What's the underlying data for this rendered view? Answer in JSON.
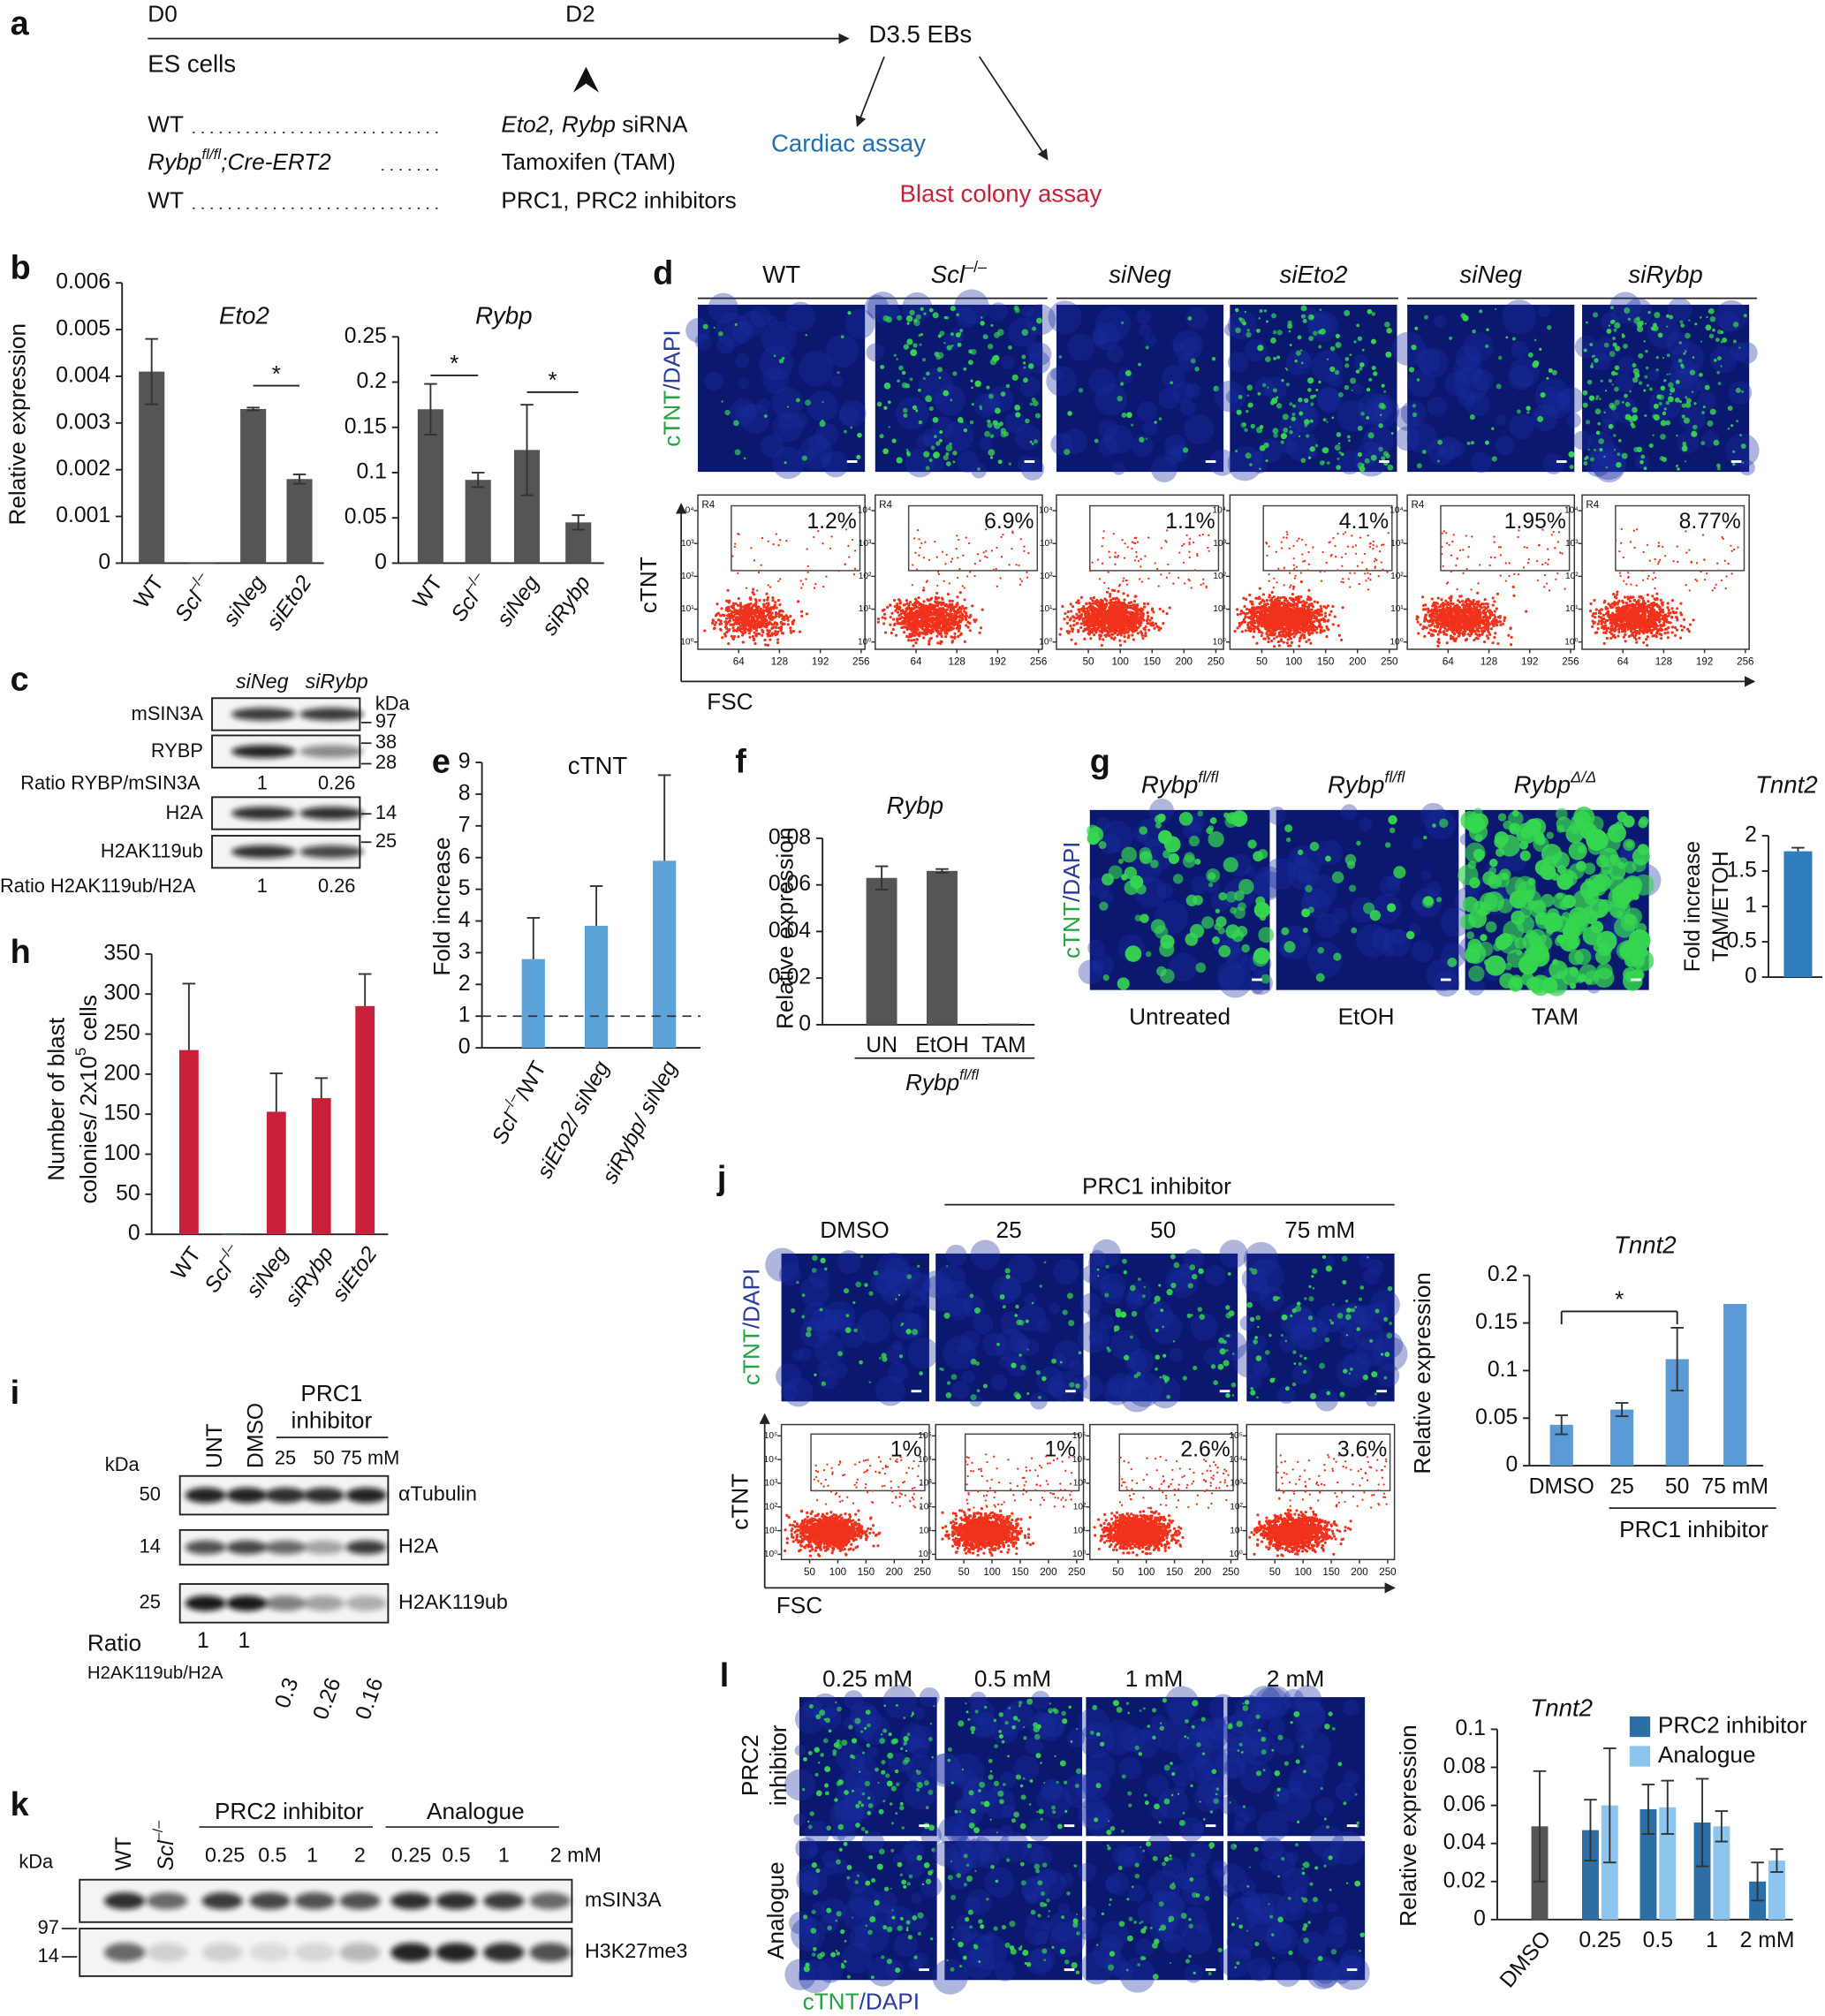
{
  "a": {
    "label": "a",
    "timeline": [
      "D0",
      "D2",
      "D3.5 EBs"
    ],
    "start": "ES cells",
    "rows": [
      {
        "left": [
          {
            "t": "WT"
          }
        ],
        "right": [
          {
            "t": "Eto2, Rybp",
            "i": true
          },
          {
            "t": " siRNA"
          }
        ]
      },
      {
        "left": [
          {
            "t": "Rybp",
            "i": true
          },
          {
            "t": "fl/fl",
            "i": true,
            "sup": true
          },
          {
            "t": ";Cre-ERT2",
            "i": true
          }
        ],
        "right": [
          {
            "t": "Tamoxifen (TAM)"
          }
        ]
      },
      {
        "left": [
          {
            "t": "WT"
          }
        ],
        "right": [
          {
            "t": "PRC1, PRC2 inhibitors"
          }
        ]
      }
    ],
    "assays": [
      {
        "text": "Cardiac assay",
        "color": "#1f6fb4"
      },
      {
        "text": "Blast colony assay",
        "color": "#c8203a"
      }
    ]
  },
  "b": {
    "label": "b",
    "ylabel": "Relative expression",
    "charts": [
      {
        "type": "bar",
        "title": [
          {
            "t": "Eto2",
            "i": true
          }
        ],
        "categories": [
          [
            {
              "t": "WT"
            }
          ],
          [
            {
              "t": "Scl",
              "i": true
            },
            {
              "t": "–/–",
              "sup": true
            }
          ],
          [
            {
              "t": "siNeg",
              "i": true
            }
          ],
          [
            {
              "t": "siEto2",
              "i": true
            }
          ]
        ],
        "values": [
          0.0041,
          0,
          0.0033,
          0.0018
        ],
        "errors": [
          0.0007,
          null,
          3e-05,
          0.0001
        ],
        "color": "#555555",
        "ylim": [
          0,
          0.006
        ],
        "yticks": [
          0,
          0.001,
          0.002,
          0.003,
          0.004,
          0.005,
          0.006
        ],
        "significance": [
          {
            "from": 2,
            "to": 3,
            "label": "*"
          }
        ]
      },
      {
        "type": "bar",
        "title": [
          {
            "t": "Rybp",
            "i": true
          }
        ],
        "categories": [
          [
            {
              "t": "WT"
            }
          ],
          [
            {
              "t": "Scl",
              "i": true
            },
            {
              "t": "–/–",
              "sup": true
            }
          ],
          [
            {
              "t": "siNeg",
              "i": true
            }
          ],
          [
            {
              "t": "siRybp",
              "i": true
            }
          ]
        ],
        "values": [
          0.17,
          0.092,
          0.125,
          0.045
        ],
        "errors": [
          0.028,
          0.008,
          0.05,
          0.008
        ],
        "color": "#555555",
        "ylim": [
          0,
          0.25
        ],
        "yticks": [
          0,
          0.05,
          0.1,
          0.15,
          0.2,
          0.25
        ],
        "significance": [
          {
            "from": 0,
            "to": 1,
            "label": "*"
          },
          {
            "from": 2,
            "to": 3,
            "label": "*"
          }
        ]
      }
    ]
  },
  "c": {
    "label": "c",
    "lanes": [
      "siNeg",
      "siRybp"
    ],
    "kda": "kDa",
    "blots": [
      {
        "name": "mSIN3A",
        "kda": [
          97
        ]
      },
      {
        "name": "RYBP",
        "kda": [
          38,
          28
        ]
      },
      {
        "name": "H2A",
        "kda": [
          14
        ]
      },
      {
        "name": "H2AK119ub",
        "kda": [
          25
        ]
      }
    ],
    "ratios": [
      {
        "label": "Ratio RYBP/mSIN3A",
        "values": [
          1,
          0.26
        ]
      },
      {
        "label": "Ratio H2AK119ub/H2A",
        "values": [
          1,
          0.26
        ]
      }
    ]
  },
  "d": {
    "label": "d",
    "headers": [
      [
        {
          "t": "WT"
        }
      ],
      [
        {
          "t": "Scl",
          "i": true
        },
        {
          "t": "–/–",
          "sup": true
        }
      ],
      [
        {
          "t": "siNeg",
          "i": true
        }
      ],
      [
        {
          "t": "siEto2",
          "i": true
        }
      ],
      [
        {
          "t": "siNeg",
          "i": true
        }
      ],
      [
        {
          "t": "siRybp",
          "i": true
        }
      ]
    ],
    "stain": [
      {
        "t": "cTNT",
        "color": "#25a244"
      },
      {
        "t": "/DAPI",
        "color": "#2a3b9c"
      }
    ],
    "yaxis": "cTNT",
    "xaxis": "FSC",
    "flow": [
      {
        "percent": "1.2%",
        "gate": "R4",
        "xticks": [
          64,
          128,
          192,
          256
        ],
        "xlim": [
          0,
          262
        ]
      },
      {
        "percent": "6.9%",
        "gate": "R4",
        "xticks": [
          64,
          128,
          192,
          256
        ],
        "xlim": [
          0,
          262
        ]
      },
      {
        "percent": "1.1%",
        "xticks": [
          50,
          100,
          150,
          200,
          250
        ],
        "xlim": [
          0,
          262
        ]
      },
      {
        "percent": "4.1%",
        "xticks": [
          50,
          100,
          150,
          200,
          250
        ],
        "xlim": [
          0,
          262
        ]
      },
      {
        "percent": "1.95%",
        "gate": "R4",
        "xticks": [
          64,
          128,
          192,
          256
        ],
        "xlim": [
          0,
          262
        ]
      },
      {
        "percent": "8.77%",
        "gate": "R4",
        "xticks": [
          64,
          128,
          192,
          256
        ],
        "xlim": [
          0,
          262
        ]
      }
    ],
    "flow_ylog": true,
    "flow_ylim": [
      0.6,
      30000
    ],
    "flow_yticks": [
      {
        "value": 1,
        "label": "10⁰"
      },
      {
        "value": 10,
        "label": "10¹"
      },
      {
        "value": 100,
        "label": "10²"
      },
      {
        "value": 1000,
        "label": "10³"
      },
      {
        "value": 10000,
        "label": "10⁴"
      }
    ]
  },
  "e": {
    "label": "e",
    "chart": {
      "type": "bar",
      "title": [
        {
          "t": "cTNT"
        }
      ],
      "ylabel": "Fold increase",
      "categories": [
        [
          {
            "t": "Scl",
            "i": true
          },
          {
            "t": "–/–",
            "sup": true
          },
          {
            "t": "/WT"
          }
        ],
        [
          {
            "t": "siEto2/ siNeg",
            "i": true
          }
        ],
        [
          {
            "t": "siRybp/ siNeg",
            "i": true
          }
        ]
      ],
      "values": [
        2.8,
        3.85,
        5.9
      ],
      "errors": [
        1.3,
        1.25,
        2.7
      ],
      "color": "#5ba3d9",
      "ylim": [
        0,
        9
      ],
      "yticks": [
        0,
        1,
        2,
        3,
        4,
        5,
        6,
        7,
        8,
        9
      ],
      "reference_line": 1
    }
  },
  "f": {
    "label": "f",
    "chart": {
      "type": "bar",
      "title": [
        {
          "t": "Rybp",
          "i": true
        }
      ],
      "ylabel": "Relative expression",
      "categories": [
        "UN",
        "EtOH",
        "TAM"
      ],
      "values": [
        0.063,
        0.066,
        0.0005
      ],
      "errors": [
        0.005,
        0.0008,
        null
      ],
      "color": "#555555",
      "ylim": [
        0,
        0.08
      ],
      "yticks": [
        0,
        0.02,
        0.04,
        0.06,
        0.08
      ],
      "group_label": [
        {
          "t": "Rybp",
          "i": true
        },
        {
          "t": "fl/fl",
          "i": true,
          "sup": true
        }
      ]
    }
  },
  "g": {
    "label": "g",
    "headers": [
      [
        {
          "t": "Rybp",
          "i": true
        },
        {
          "t": "fl/fl",
          "i": true,
          "sup": true
        }
      ],
      [
        {
          "t": "Rybp",
          "i": true
        },
        {
          "t": "fl/fl",
          "i": true,
          "sup": true
        }
      ],
      [
        {
          "t": "Rybp",
          "i": true
        },
        {
          "t": "Δ/Δ",
          "i": true,
          "sup": true
        }
      ]
    ],
    "conditions": [
      "Untreated",
      "EtOH",
      "TAM"
    ],
    "stain": [
      {
        "t": "cTNT",
        "color": "#25a244"
      },
      {
        "t": "/DAPI",
        "color": "#2a3b9c"
      }
    ],
    "chart": {
      "type": "bar",
      "title": [
        {
          "t": "Tnnt2",
          "i": true
        }
      ],
      "ylabel": [
        "Fold increase",
        "TAM/ETOH"
      ],
      "values": [
        1.78
      ],
      "errors": [
        0.05
      ],
      "color": "#2e7dbd",
      "ylim": [
        0,
        2
      ],
      "yticks": [
        0,
        0.5,
        1,
        1.5,
        2
      ]
    }
  },
  "h": {
    "label": "h",
    "chart": {
      "type": "bar",
      "ylabel": [
        [
          {
            "t": "Number of blast"
          }
        ],
        [
          {
            "t": "colonies/ 2x10"
          },
          {
            "t": "5",
            "sup": true
          },
          {
            "t": " cells"
          }
        ]
      ],
      "categories": [
        [
          {
            "t": "WT"
          }
        ],
        [
          {
            "t": "Scl",
            "i": true
          },
          {
            "t": "–/–",
            "sup": true
          }
        ],
        [
          {
            "t": "siNeg",
            "i": true
          }
        ],
        [
          {
            "t": "siRybp",
            "i": true
          }
        ],
        [
          {
            "t": "siEto2",
            "i": true
          }
        ]
      ],
      "values": [
        230,
        0,
        153,
        170,
        285
      ],
      "errors": [
        83,
        null,
        48,
        25,
        40
      ],
      "color": "#c8203a",
      "ylim": [
        0,
        350
      ],
      "yticks": [
        0,
        50,
        100,
        150,
        200,
        250,
        300,
        350
      ]
    }
  },
  "i": {
    "label": "i",
    "lanes": [
      "UNT",
      "DMSO"
    ],
    "inhibitor": [
      "PRC1",
      "inhibitor"
    ],
    "doses": [
      25,
      50,
      "75 mM"
    ],
    "kda": "kDa",
    "blots": [
      {
        "name": "αTubulin",
        "kda": 50
      },
      {
        "name": "H2A",
        "kda": 14
      },
      {
        "name": "H2AK119ub",
        "kda": 25
      }
    ],
    "ratio_label": [
      "Ratio",
      "H2AK119ub/H2A"
    ],
    "ratios": [
      1,
      1,
      0.3,
      0.26,
      0.16
    ]
  },
  "j": {
    "label": "j",
    "inhibitor": "PRC1 inhibitor",
    "headers": [
      "DMSO",
      25,
      50,
      "75 mM"
    ],
    "stain": [
      {
        "t": "cTNT",
        "color": "#25a244"
      },
      {
        "t": "/DAPI",
        "color": "#2a3b9c"
      }
    ],
    "yaxis": "cTNT",
    "xaxis": "FSC",
    "flow": [
      {
        "percent": "1%"
      },
      {
        "percent": "1%"
      },
      {
        "percent": "2.6%"
      },
      {
        "percent": "3.6%"
      }
    ],
    "flow_xticks": [
      50,
      100,
      150,
      200,
      250
    ],
    "flow_xlim": [
      0,
      262
    ],
    "flow_ylog": true,
    "flow_ylim": [
      0.6,
      300000
    ],
    "flow_yticks": [
      {
        "value": 1,
        "label": "10⁰"
      },
      {
        "value": 10,
        "label": "10¹"
      },
      {
        "value": 100,
        "label": "10²"
      },
      {
        "value": 1000,
        "label": "10³"
      },
      {
        "value": 10000,
        "label": "10⁴"
      },
      {
        "value": 100000,
        "label": "10⁵"
      }
    ],
    "chart": {
      "type": "bar",
      "title": [
        {
          "t": "Tnnt2",
          "i": true
        }
      ],
      "ylabel": "Relative expression",
      "categories": [
        "DMSO",
        "25",
        "50",
        "75 mM"
      ],
      "values": [
        0.043,
        0.059,
        0.112,
        0.17
      ],
      "errors": [
        0.01,
        0.007,
        0.033,
        null
      ],
      "color": "#5b9bd5",
      "ylim": [
        0,
        0.2
      ],
      "yticks": [
        0,
        0.05,
        0.1,
        0.15,
        0.2
      ],
      "group_label": "PRC1 inhibitor",
      "significance": [
        {
          "from": 0,
          "to": 2,
          "label": "*"
        }
      ]
    }
  },
  "k": {
    "label": "k",
    "lanes": [
      [
        {
          "t": "WT"
        }
      ],
      [
        {
          "t": "Scl",
          "i": true
        },
        {
          "t": "–/–",
          "sup": true
        }
      ]
    ],
    "groups": [
      "PRC2 inhibitor",
      "Analogue"
    ],
    "doses": [
      "0.25",
      "0.5",
      "1",
      "2",
      "0.25",
      "0.5",
      "1",
      "2 mM"
    ],
    "kda": "kDa",
    "blots": [
      {
        "name": "mSIN3A",
        "kda": 97
      },
      {
        "name": "H3K27me3",
        "kda": 14
      }
    ]
  },
  "l": {
    "label": "l",
    "doses": [
      "0.25 mM",
      "0.5 mM",
      "1 mM",
      "2 mM"
    ],
    "rows": [
      [
        "PRC2",
        "inhibitor"
      ],
      [
        "Analogue"
      ]
    ],
    "stain": [
      {
        "t": "cTNT",
        "color": "#25a244"
      },
      {
        "t": "/DAPI",
        "color": "#2a3b9c"
      }
    ],
    "chart": {
      "type": "bar",
      "title": [
        {
          "t": "Tnnt2",
          "i": true
        }
      ],
      "ylabel": "Relative expression",
      "categories": [
        "DMSO",
        "0.25",
        "0.5",
        "1",
        "2 mM"
      ],
      "control": {
        "color": "#555555",
        "values": [
          0.049,
          null,
          null,
          null,
          null
        ],
        "errors": [
          0.029,
          null,
          null,
          null,
          null
        ]
      },
      "series": [
        {
          "name": "PRC2 inhibitor",
          "color": "#2e6ea6",
          "values": [
            null,
            0.047,
            0.058,
            0.051,
            0.02
          ],
          "errors": [
            null,
            0.016,
            0.013,
            0.023,
            0.01
          ]
        },
        {
          "name": "Analogue",
          "color": "#8ec5ef",
          "values": [
            null,
            0.06,
            0.059,
            0.049,
            0.031
          ],
          "errors": [
            null,
            0.03,
            0.014,
            0.008,
            0.006
          ]
        }
      ],
      "ylim": [
        0,
        0.1
      ],
      "yticks": [
        0,
        0.02,
        0.04,
        0.06,
        0.08,
        0.1
      ],
      "legend": "top-right"
    }
  }
}
